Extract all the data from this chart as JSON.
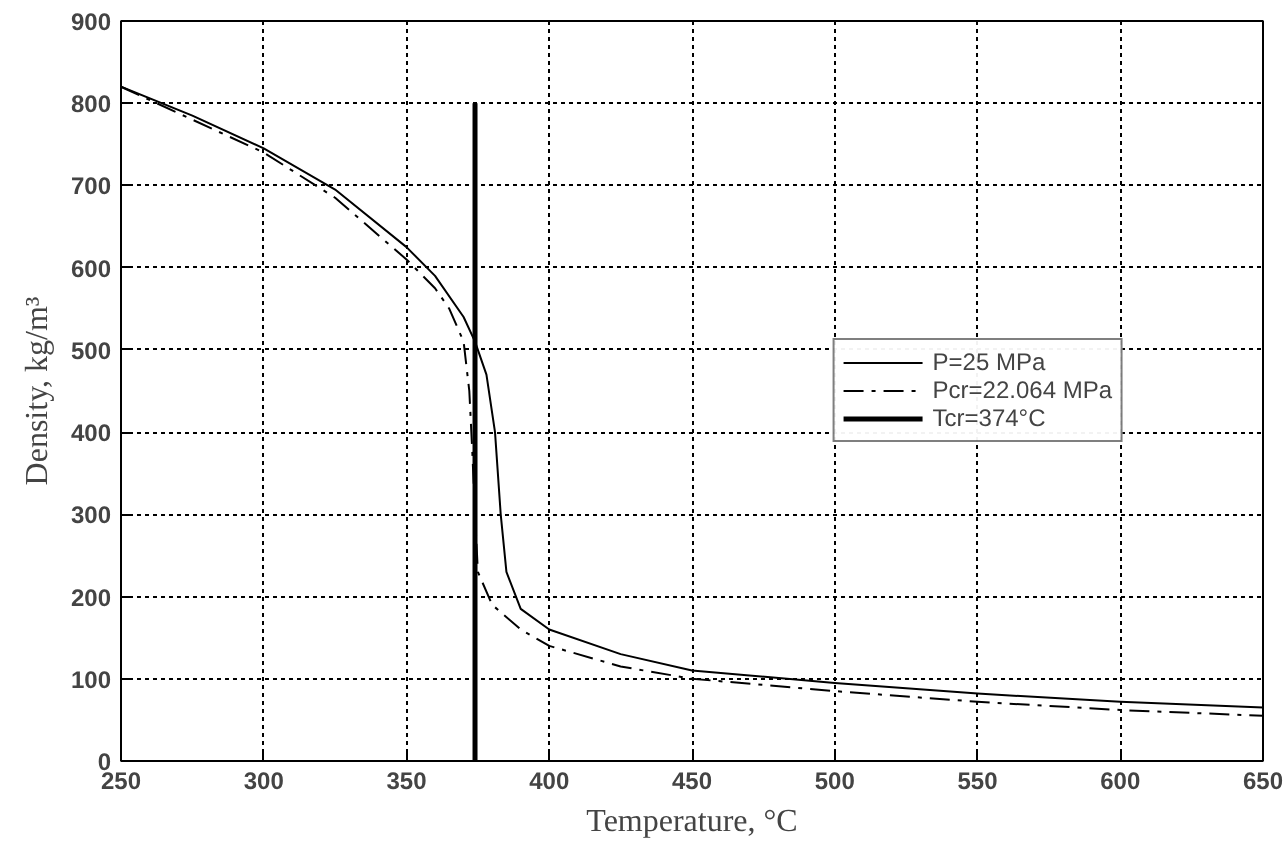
{
  "chart_data": {
    "type": "line",
    "xlabel": "Temperature, °C",
    "ylabel": "Density, kg/m³",
    "xlim": [
      250,
      650
    ],
    "ylim": [
      0,
      900
    ],
    "xticks": [
      250,
      300,
      350,
      400,
      450,
      500,
      550,
      600,
      650
    ],
    "yticks": [
      0,
      100,
      200,
      300,
      400,
      500,
      600,
      700,
      800,
      900
    ],
    "grid": true,
    "legend": "right",
    "marker": "none",
    "series": [
      {
        "name": "P=25 MPa",
        "color": "#000000",
        "line_style": "solid",
        "x": [
          250,
          275,
          300,
          325,
          350,
          360,
          370,
          374,
          378,
          381,
          383,
          385,
          390,
          400,
          425,
          450,
          500,
          550,
          600,
          650
        ],
        "values": [
          820,
          785,
          745,
          695,
          625,
          590,
          540,
          510,
          470,
          400,
          300,
          230,
          185,
          160,
          130,
          110,
          95,
          82,
          72,
          65
        ]
      },
      {
        "name": "Pcr=22.064 MPa",
        "color": "#000000",
        "line_style": "dashed",
        "x": [
          250,
          275,
          300,
          325,
          350,
          360,
          365,
          370,
          372,
          373,
          374,
          375,
          380,
          390,
          400,
          425,
          450,
          500,
          550,
          600,
          650
        ],
        "values": [
          820,
          780,
          740,
          685,
          610,
          575,
          550,
          510,
          450,
          380,
          300,
          230,
          190,
          160,
          140,
          115,
          100,
          85,
          72,
          62,
          55
        ]
      },
      {
        "name": "Tcr=374°C",
        "color": "#000000",
        "line_style": "solid",
        "x": [
          374,
          374
        ],
        "values": [
          0,
          800
        ]
      }
    ]
  }
}
